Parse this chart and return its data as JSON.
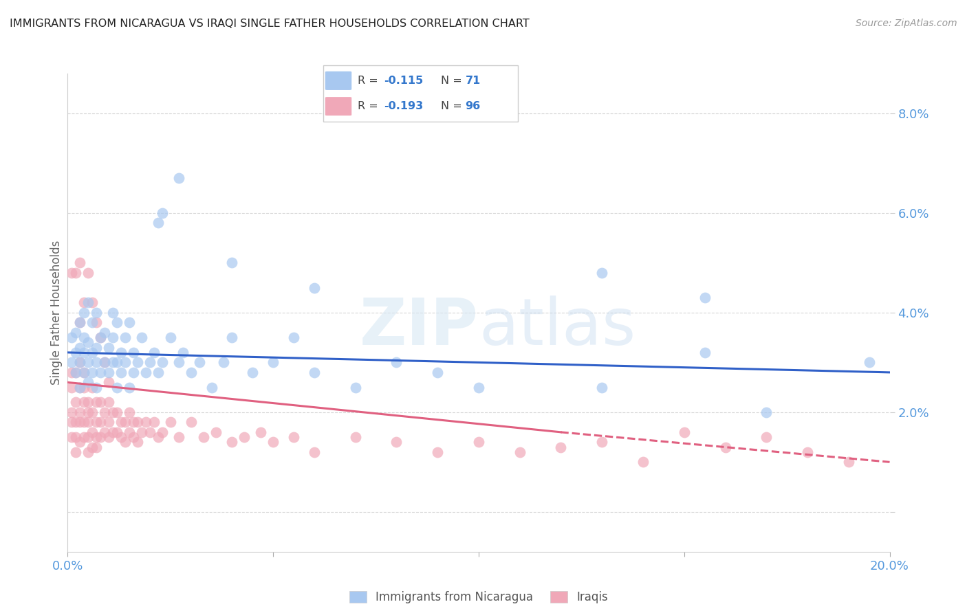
{
  "title": "IMMIGRANTS FROM NICARAGUA VS IRAQI SINGLE FATHER HOUSEHOLDS CORRELATION CHART",
  "source": "Source: ZipAtlas.com",
  "ylabel": "Single Father Households",
  "xlim": [
    0.0,
    0.2
  ],
  "ylim": [
    -0.008,
    0.088
  ],
  "yticks": [
    0.0,
    0.02,
    0.04,
    0.06,
    0.08
  ],
  "xticks": [
    0.0,
    0.05,
    0.1,
    0.15,
    0.2
  ],
  "xtick_labels": [
    "0.0%",
    "",
    "",
    "",
    "20.0%"
  ],
  "ytick_labels_right": [
    "",
    "2.0%",
    "4.0%",
    "6.0%",
    "8.0%"
  ],
  "color_nicaragua": "#A8C8F0",
  "color_iraqi": "#F0A8B8",
  "trendline_color_nicaragua": "#3060C8",
  "trendline_color_iraqi": "#E06080",
  "watermark_zip": "ZIP",
  "watermark_atlas": "atlas",
  "nicaragua_x": [
    0.001,
    0.001,
    0.002,
    0.002,
    0.002,
    0.003,
    0.003,
    0.003,
    0.003,
    0.004,
    0.004,
    0.004,
    0.004,
    0.005,
    0.005,
    0.005,
    0.005,
    0.006,
    0.006,
    0.006,
    0.007,
    0.007,
    0.007,
    0.007,
    0.008,
    0.008,
    0.009,
    0.009,
    0.01,
    0.01,
    0.011,
    0.011,
    0.011,
    0.012,
    0.012,
    0.012,
    0.013,
    0.013,
    0.014,
    0.014,
    0.015,
    0.015,
    0.016,
    0.016,
    0.017,
    0.018,
    0.019,
    0.02,
    0.021,
    0.022,
    0.023,
    0.025,
    0.027,
    0.028,
    0.03,
    0.032,
    0.035,
    0.038,
    0.04,
    0.045,
    0.05,
    0.055,
    0.06,
    0.07,
    0.08,
    0.09,
    0.1,
    0.13,
    0.155,
    0.17,
    0.195
  ],
  "nicaragua_y": [
    0.03,
    0.035,
    0.028,
    0.032,
    0.036,
    0.025,
    0.03,
    0.033,
    0.038,
    0.028,
    0.032,
    0.035,
    0.04,
    0.026,
    0.03,
    0.034,
    0.042,
    0.028,
    0.032,
    0.038,
    0.025,
    0.03,
    0.033,
    0.04,
    0.028,
    0.035,
    0.03,
    0.036,
    0.028,
    0.033,
    0.03,
    0.035,
    0.04,
    0.025,
    0.03,
    0.038,
    0.028,
    0.032,
    0.03,
    0.035,
    0.025,
    0.038,
    0.028,
    0.032,
    0.03,
    0.035,
    0.028,
    0.03,
    0.032,
    0.028,
    0.03,
    0.035,
    0.03,
    0.032,
    0.028,
    0.03,
    0.025,
    0.03,
    0.035,
    0.028,
    0.03,
    0.035,
    0.028,
    0.025,
    0.03,
    0.028,
    0.025,
    0.025,
    0.032,
    0.02,
    0.03
  ],
  "nicaragua_y_outliers": [
    0.067,
    0.058,
    0.06,
    0.05,
    0.045,
    0.048,
    0.043
  ],
  "nicaragua_x_outliers": [
    0.027,
    0.022,
    0.023,
    0.04,
    0.06,
    0.13,
    0.155
  ],
  "iraqi_x": [
    0.001,
    0.001,
    0.001,
    0.001,
    0.001,
    0.002,
    0.002,
    0.002,
    0.002,
    0.002,
    0.003,
    0.003,
    0.003,
    0.003,
    0.003,
    0.004,
    0.004,
    0.004,
    0.004,
    0.004,
    0.005,
    0.005,
    0.005,
    0.005,
    0.005,
    0.006,
    0.006,
    0.006,
    0.006,
    0.007,
    0.007,
    0.007,
    0.007,
    0.008,
    0.008,
    0.008,
    0.009,
    0.009,
    0.01,
    0.01,
    0.01,
    0.011,
    0.011,
    0.012,
    0.012,
    0.013,
    0.013,
    0.014,
    0.014,
    0.015,
    0.015,
    0.016,
    0.016,
    0.017,
    0.017,
    0.018,
    0.019,
    0.02,
    0.021,
    0.022,
    0.023,
    0.025,
    0.027,
    0.03,
    0.033,
    0.036,
    0.04,
    0.043,
    0.047,
    0.05,
    0.055,
    0.06,
    0.07,
    0.08,
    0.09,
    0.1,
    0.11,
    0.12,
    0.13,
    0.14,
    0.15,
    0.16,
    0.17,
    0.18,
    0.19,
    0.001,
    0.002,
    0.003,
    0.003,
    0.004,
    0.005,
    0.006,
    0.007,
    0.008,
    0.009,
    0.01
  ],
  "iraqi_y": [
    0.028,
    0.025,
    0.02,
    0.015,
    0.018,
    0.028,
    0.022,
    0.018,
    0.015,
    0.012,
    0.03,
    0.025,
    0.02,
    0.018,
    0.014,
    0.028,
    0.022,
    0.018,
    0.015,
    0.025,
    0.022,
    0.018,
    0.015,
    0.012,
    0.02,
    0.025,
    0.02,
    0.016,
    0.013,
    0.022,
    0.018,
    0.015,
    0.013,
    0.022,
    0.018,
    0.015,
    0.02,
    0.016,
    0.022,
    0.018,
    0.015,
    0.02,
    0.016,
    0.02,
    0.016,
    0.018,
    0.015,
    0.018,
    0.014,
    0.02,
    0.016,
    0.018,
    0.015,
    0.018,
    0.014,
    0.016,
    0.018,
    0.016,
    0.018,
    0.015,
    0.016,
    0.018,
    0.015,
    0.018,
    0.015,
    0.016,
    0.014,
    0.015,
    0.016,
    0.014,
    0.015,
    0.012,
    0.015,
    0.014,
    0.012,
    0.014,
    0.012,
    0.013,
    0.014,
    0.01,
    0.016,
    0.013,
    0.015,
    0.012,
    0.01,
    0.048,
    0.048,
    0.05,
    0.038,
    0.042,
    0.048,
    0.042,
    0.038,
    0.035,
    0.03,
    0.026
  ],
  "nic_trend_x0": 0.0,
  "nic_trend_y0": 0.032,
  "nic_trend_x1": 0.2,
  "nic_trend_y1": 0.028,
  "iraqi_trend_x0": 0.0,
  "iraqi_trend_y0": 0.026,
  "iraqi_trend_x1_solid": 0.12,
  "iraqi_trend_y1_solid": 0.016,
  "iraqi_trend_x1_dash": 0.2,
  "iraqi_trend_y1_dash": 0.01
}
